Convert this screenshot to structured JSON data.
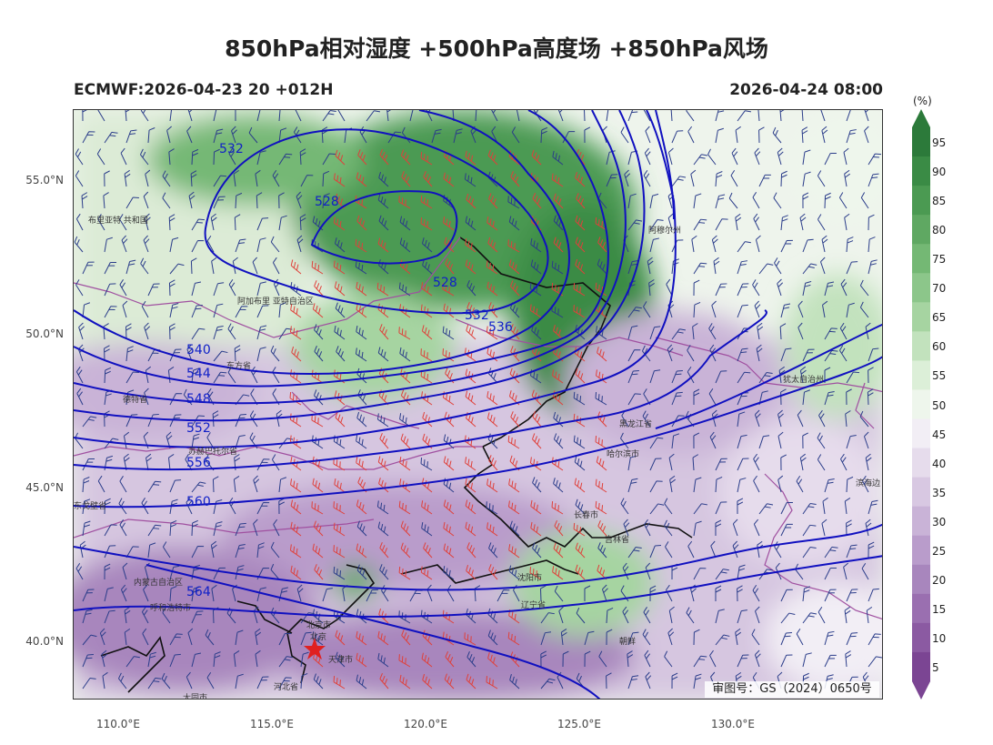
{
  "title": "850hPa相对湿度 +500hPa高度场 +850hPa风场",
  "subtitle_left": "ECMWF:2026-04-23 20 +012H",
  "subtitle_right": "2026-04-24 08:00",
  "lat_labels": [
    "55.0°N",
    "50.0°N",
    "45.0°N",
    "40.0°N"
  ],
  "lon_labels": [
    "110.0°E",
    "115.0°E",
    "120.0°E",
    "125.0°E",
    "130.0°E"
  ],
  "colorbar": {
    "unit": "(%)",
    "levels": [
      "95",
      "90",
      "85",
      "80",
      "75",
      "70",
      "65",
      "60",
      "55",
      "50",
      "45",
      "40",
      "35",
      "30",
      "25",
      "20",
      "15",
      "10",
      "5"
    ],
    "colors": [
      "#2c7a3a",
      "#3a8b45",
      "#4b9a52",
      "#5fa862",
      "#74b874",
      "#8cc68a",
      "#a6d4a1",
      "#c2e2bd",
      "#dcefd8",
      "#eef6ec",
      "#f2eef5",
      "#e6dcec",
      "#d8c8e2",
      "#c9b3d7",
      "#b99ccb",
      "#a886bd",
      "#9a6fb0",
      "#8b5aa2",
      "#7b4593"
    ]
  },
  "contours": [
    {
      "label": "528",
      "value": 528
    },
    {
      "label": "532",
      "value": 532
    },
    {
      "label": "536",
      "value": 536
    },
    {
      "label": "540",
      "value": 540
    },
    {
      "label": "544",
      "value": 544
    },
    {
      "label": "548",
      "value": 548
    },
    {
      "label": "552",
      "value": 552
    },
    {
      "label": "556",
      "value": 556
    },
    {
      "label": "560",
      "value": 560
    },
    {
      "label": "564",
      "value": 564
    }
  ],
  "place_labels": {
    "buryatia": "布里亚特\n共和国",
    "aga": "阿加布里\n亚特自治区",
    "east_prov": "东方省",
    "sukhbaatar": "苏赫巴托尔省",
    "dornogovi": "东戈壁省",
    "inner_mongolia": "内蒙古自治区",
    "hohhot": "呼和浩特市",
    "beijing": "北京市",
    "beijing2": "北京",
    "tianjin": "天津市",
    "hebei": "河北省",
    "datong": "大同市",
    "amur": "阿穆尔州",
    "jao": "犹太自治州",
    "heilongjiang": "黑龙江省",
    "harbin": "哈尔滨市",
    "changchun": "长春市",
    "jilin": "吉林省",
    "shenyang": "沈阳市",
    "liaoning": "辽宁省",
    "north_korea": "朝鲜",
    "haibin": "滨海边",
    "xiuteqi": "德特省"
  },
  "stamp": "审图号：GS（2024）0650号"
}
